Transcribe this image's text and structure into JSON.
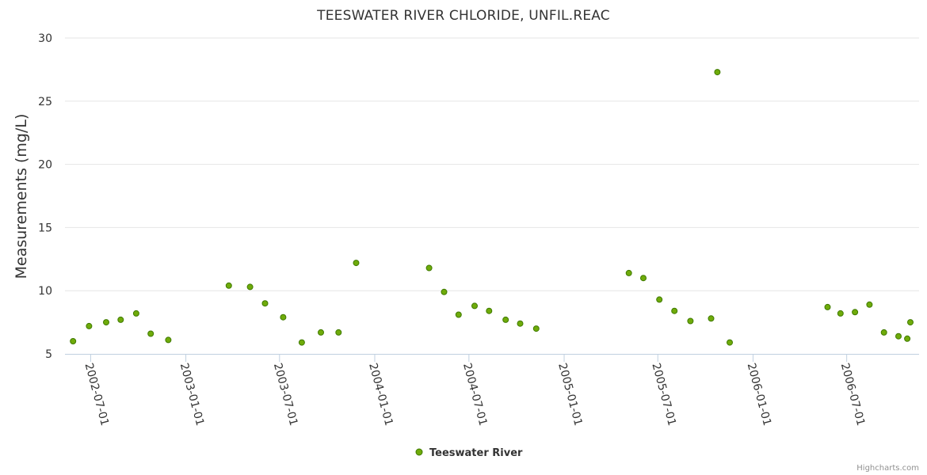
{
  "colors": {
    "marker_fill": "#6fab0a",
    "marker_stroke": "#3f7a00",
    "grid": "#e6e6e6",
    "axis": "#c0d0e0"
  },
  "chart_data": {
    "type": "scatter",
    "title": "TEESWATER RIVER CHLORIDE, UNFIL.REAC",
    "ylabel": "Measurements (mg/L)",
    "xlabel": "",
    "ylim": [
      5,
      30
    ],
    "yticks": [
      5,
      10,
      15,
      20,
      25,
      30
    ],
    "xlim": [
      "2002-05-17",
      "2006-11-01"
    ],
    "xticks": [
      "2002-07-01",
      "2003-01-01",
      "2003-07-01",
      "2004-01-01",
      "2004-07-01",
      "2005-01-01",
      "2005-07-01",
      "2006-01-01",
      "2006-07-01"
    ],
    "legend": {
      "position": "bottom-center"
    },
    "credit": "Highcharts.com",
    "series": [
      {
        "name": "Teeswater River",
        "points": [
          {
            "x": "2002-05-28",
            "y": 6.0
          },
          {
            "x": "2002-06-28",
            "y": 7.2
          },
          {
            "x": "2002-07-31",
            "y": 7.5
          },
          {
            "x": "2002-08-28",
            "y": 7.7
          },
          {
            "x": "2002-09-27",
            "y": 8.2
          },
          {
            "x": "2002-10-25",
            "y": 6.6
          },
          {
            "x": "2002-11-28",
            "y": 6.1
          },
          {
            "x": "2003-03-25",
            "y": 10.4
          },
          {
            "x": "2003-05-05",
            "y": 10.3
          },
          {
            "x": "2003-06-03",
            "y": 9.0
          },
          {
            "x": "2003-07-08",
            "y": 7.9
          },
          {
            "x": "2003-08-13",
            "y": 5.9
          },
          {
            "x": "2003-09-19",
            "y": 6.7
          },
          {
            "x": "2003-10-23",
            "y": 6.7
          },
          {
            "x": "2003-11-26",
            "y": 12.2
          },
          {
            "x": "2004-04-15",
            "y": 11.8
          },
          {
            "x": "2004-05-14",
            "y": 9.9
          },
          {
            "x": "2004-06-11",
            "y": 8.1
          },
          {
            "x": "2004-07-12",
            "y": 8.8
          },
          {
            "x": "2004-08-09",
            "y": 8.4
          },
          {
            "x": "2004-09-10",
            "y": 7.7
          },
          {
            "x": "2004-10-08",
            "y": 7.4
          },
          {
            "x": "2004-11-08",
            "y": 7.0
          },
          {
            "x": "2005-05-06",
            "y": 11.4
          },
          {
            "x": "2005-06-03",
            "y": 11.0
          },
          {
            "x": "2005-07-04",
            "y": 9.3
          },
          {
            "x": "2005-08-02",
            "y": 8.4
          },
          {
            "x": "2005-09-02",
            "y": 7.6
          },
          {
            "x": "2005-10-12",
            "y": 7.8
          },
          {
            "x": "2005-10-24",
            "y": 27.3
          },
          {
            "x": "2005-11-17",
            "y": 5.9
          },
          {
            "x": "2006-05-25",
            "y": 8.7
          },
          {
            "x": "2006-06-19",
            "y": 8.2
          },
          {
            "x": "2006-07-17",
            "y": 8.3
          },
          {
            "x": "2006-08-14",
            "y": 8.9
          },
          {
            "x": "2006-09-11",
            "y": 6.7
          },
          {
            "x": "2006-10-09",
            "y": 6.4
          },
          {
            "x": "2006-10-26",
            "y": 6.2
          },
          {
            "x": "2006-11-01",
            "y": 7.5
          }
        ]
      }
    ]
  }
}
